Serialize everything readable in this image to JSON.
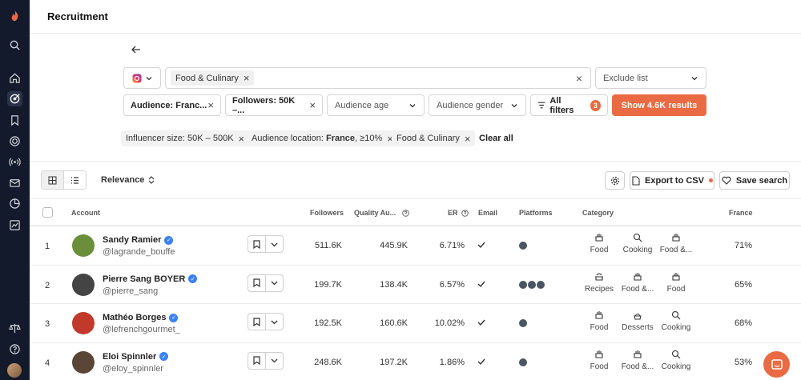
{
  "page": {
    "title": "Recruitment"
  },
  "search": {
    "platform_icon": "instagram-icon",
    "tags": [
      "Food & Culinary"
    ],
    "exclude_placeholder": "Exclude list"
  },
  "filters": {
    "audience_location": "Audience: Franc...",
    "followers": "Followers: 50K –...",
    "audience_age": "Audience age",
    "audience_gender": "Audience gender",
    "all_filters": "All filters",
    "all_filters_count": "3",
    "show_results": "Show 4.6K results"
  },
  "active_filters": {
    "chip1": "Influencer size: 50K – 500K",
    "chip2_prefix": "Audience location: ",
    "chip2_bold": "France",
    "chip2_suffix": ", ≥10%",
    "chip3": "Food & Culinary",
    "clear_all": "Clear all"
  },
  "toolbar": {
    "sort": "Relevance",
    "export": "Export to CSV",
    "save_search": "Save search"
  },
  "table": {
    "headers": {
      "account": "Account",
      "followers": "Followers",
      "quality": "Quality Au...",
      "er": "ER",
      "email": "Email",
      "platforms": "Platforms",
      "category": "Category",
      "france": "France"
    },
    "rows": [
      {
        "num": "1",
        "name": "Sandy Ramier",
        "handle": "@lagrande_bouffe",
        "followers": "511.6K",
        "quality": "445.9K",
        "er": "6.71%",
        "platforms": 1,
        "categories": [
          "Food",
          "Cooking",
          "Food &..."
        ],
        "france": "71%"
      },
      {
        "num": "2",
        "name": "Pierre Sang BOYER",
        "handle": "@pierre_sang",
        "followers": "199.7K",
        "quality": "138.4K",
        "er": "6.57%",
        "platforms": 3,
        "categories": [
          "Recipes",
          "Food &...",
          "Food"
        ],
        "france": "65%"
      },
      {
        "num": "3",
        "name": "Mathéo Borges",
        "handle": "@lefrenchgourmet_",
        "followers": "192.5K",
        "quality": "160.6K",
        "er": "10.02%",
        "platforms": 1,
        "categories": [
          "Food",
          "Desserts",
          "Cooking"
        ],
        "france": "68%"
      },
      {
        "num": "4",
        "name": "Eloi Spinnler",
        "handle": "@eloy_spinnler",
        "followers": "248.6K",
        "quality": "197.2K",
        "er": "1.86%",
        "platforms": 1,
        "categories": [
          "Food",
          "Food &...",
          "Cooking"
        ],
        "france": "53%"
      }
    ]
  },
  "colors": {
    "accent": "#ea6a43",
    "sidebar": "#131a2b",
    "verified": "#3b82f6"
  }
}
